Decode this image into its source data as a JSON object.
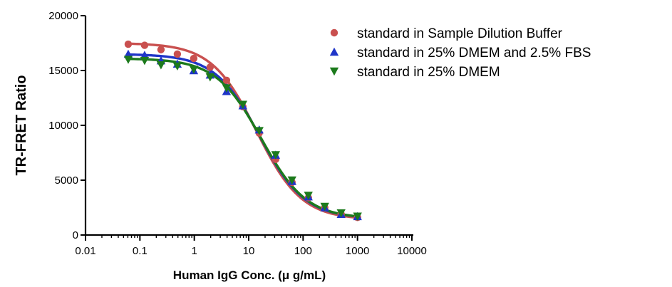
{
  "chart_data": {
    "type": "scatter",
    "xscale": "log",
    "xlabel": "Human IgG Conc. (μ g/mL)",
    "ylabel": "TR-FRET Ratio",
    "xlim": [
      0.01,
      10000
    ],
    "ylim": [
      0,
      20000
    ],
    "xticks": [
      0.01,
      0.1,
      1,
      10,
      100,
      1000,
      10000
    ],
    "xtick_labels": [
      "0.01",
      "0.1",
      "1",
      "10",
      "100",
      "1000",
      "10000"
    ],
    "yticks": [
      0,
      5000,
      10000,
      15000,
      20000
    ],
    "ytick_labels": [
      "0",
      "5000",
      "10000",
      "15000",
      "20000"
    ],
    "grid": false,
    "legend_position": "top-right",
    "x": [
      0.061,
      0.122,
      0.244,
      0.488,
      0.977,
      1.95,
      3.91,
      7.81,
      15.6,
      31.3,
      62.5,
      125,
      250,
      500,
      1000
    ],
    "series": [
      {
        "name": "standard in Sample Dilution Buffer",
        "marker": "circle",
        "color": "#c9504f",
        "values": [
          17400,
          17300,
          16900,
          16500,
          16100,
          15300,
          14100,
          11700,
          9300,
          6900,
          4800,
          3400,
          2500,
          1900,
          1600
        ],
        "curve": {
          "top": 17500,
          "bottom": 1400,
          "ec50": 14.0,
          "hill": 1.05
        }
      },
      {
        "name": "standard in 25% DMEM and 2.5% FBS",
        "marker": "triangle-up",
        "color": "#1f35c8",
        "values": [
          16500,
          16400,
          15900,
          15600,
          15000,
          14600,
          13100,
          11800,
          9600,
          7300,
          4900,
          3500,
          2500,
          1900,
          1700
        ],
        "curve": {
          "top": 16500,
          "bottom": 1500,
          "ec50": 16.0,
          "hill": 1.05
        }
      },
      {
        "name": "standard in 25% DMEM",
        "marker": "triangle-down",
        "color": "#1c7a1c",
        "values": [
          16000,
          15900,
          15500,
          15400,
          15100,
          14400,
          13400,
          11900,
          9500,
          7300,
          5000,
          3600,
          2600,
          2000,
          1700
        ],
        "curve": {
          "top": 16100,
          "bottom": 1500,
          "ec50": 17.0,
          "hill": 1.05
        }
      }
    ]
  }
}
